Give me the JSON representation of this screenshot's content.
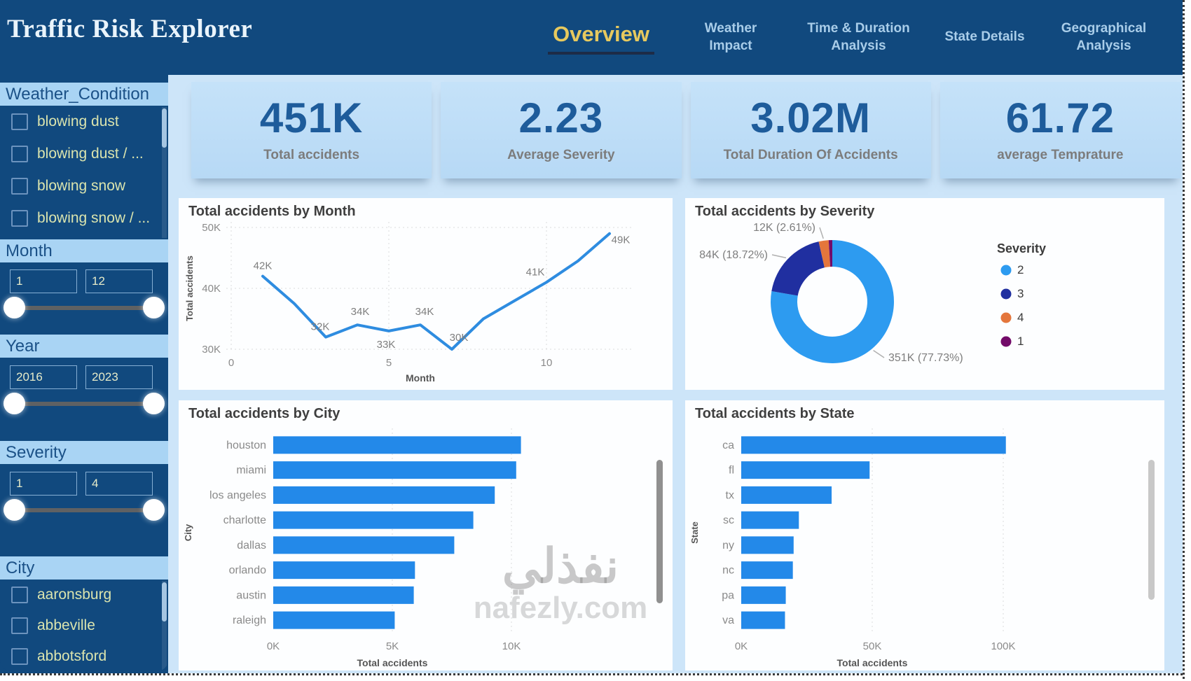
{
  "header": {
    "title": "Traffic Risk Explorer",
    "tabs": [
      {
        "label": "Overview",
        "active": true
      },
      {
        "label": "Weather Impact",
        "active": false
      },
      {
        "label": "Time & Duration Analysis",
        "active": false
      },
      {
        "label": "State Details",
        "active": false
      },
      {
        "label": "Geographical Analysis",
        "active": false
      }
    ]
  },
  "sidebar": {
    "weather_filter": {
      "title": "Weather_Condition",
      "items": [
        "blowing dust",
        "blowing dust / ...",
        "blowing snow",
        "blowing snow / ..."
      ]
    },
    "month_filter": {
      "title": "Month",
      "min": "1",
      "max": "12"
    },
    "year_filter": {
      "title": "Year",
      "min": "2016",
      "max": "2023"
    },
    "severity_filter": {
      "title": "Severity",
      "min": "1",
      "max": "4"
    },
    "city_filter": {
      "title": "City",
      "items": [
        "aaronsburg",
        "abbeville",
        "abbotsford"
      ]
    }
  },
  "kpis": [
    {
      "value": "451K",
      "label": "Total accidents"
    },
    {
      "value": "2.23",
      "label": "Average Severity"
    },
    {
      "value": "3.02M",
      "label": "Total Duration Of Accidents"
    },
    {
      "value": "61.72",
      "label": "average Temprature"
    }
  ],
  "watermark": {
    "arabic": "نفذلي",
    "domain": "nafezly.com"
  },
  "colors": {
    "header_bg": "#11497E",
    "page_bg": "#CDE5F9",
    "panel_bg": "#FDFEFF",
    "accent_gold": "#E7C95E",
    "tab_inactive": "#A9CDE9",
    "filter_header_bg": "#A9D4F4",
    "filter_header_text": "#1B5187",
    "filter_item_text": "#DAE4AE",
    "kpi_value": "#1E5C9B",
    "kpi_label": "#7C7C7C",
    "bar_blue": "#2389E9",
    "line_blue": "#2E8CE0",
    "axis_text": "#8A8A8A",
    "data_label": "#7E7E7E"
  },
  "chart_data": [
    {
      "id": "accidents_by_month",
      "type": "line",
      "title": "Total accidents by Month",
      "xlabel": "Month",
      "ylabel": "Total accidents",
      "x": [
        1,
        2,
        3,
        4,
        5,
        6,
        7,
        8,
        9,
        10,
        11,
        12
      ],
      "values": [
        42000,
        37500,
        32000,
        34000,
        33000,
        34000,
        30000,
        35000,
        38000,
        41000,
        44500,
        49000
      ],
      "point_labels": {
        "1": "42K",
        "3": "32K",
        "4": "34K",
        "5": "33K",
        "6": "34K",
        "7": "30K",
        "10": "41K",
        "12": "49K"
      },
      "ylim": [
        30000,
        50000
      ],
      "yticks": [
        {
          "label": "30K",
          "value": 30000
        },
        {
          "label": "40K",
          "value": 40000
        },
        {
          "label": "50K",
          "value": 50000
        }
      ],
      "xticks": [
        {
          "label": "0",
          "value": 0
        },
        {
          "label": "5",
          "value": 5
        },
        {
          "label": "10",
          "value": 10
        }
      ],
      "grid": "dotted"
    },
    {
      "id": "accidents_by_severity",
      "type": "donut",
      "title": "Total accidents by Severity",
      "legend_title": "Severity",
      "legend_position": "right",
      "slices": [
        {
          "name": "2",
          "value": 351000,
          "pct": 77.73,
          "label": "351K (77.73%)",
          "color": "#2D9BF0"
        },
        {
          "name": "3",
          "value": 84000,
          "pct": 18.72,
          "label": "84K (18.72%)",
          "color": "#202FA0"
        },
        {
          "name": "4",
          "value": 12000,
          "pct": 2.61,
          "label": "12K (2.61%)",
          "color": "#E4763C"
        },
        {
          "name": "1",
          "value": 4000,
          "pct": 0.94,
          "label": "",
          "color": "#730B69"
        }
      ]
    },
    {
      "id": "accidents_by_city",
      "type": "bar",
      "title": "Total accidents by City",
      "xlabel": "Total accidents",
      "ylabel": "City",
      "categories": [
        "houston",
        "miami",
        "los angeles",
        "charlotte",
        "dallas",
        "orlando",
        "austin",
        "raleigh"
      ],
      "values": [
        10400,
        10200,
        9300,
        8400,
        7600,
        5950,
        5900,
        5100
      ],
      "xticks": [
        {
          "label": "0K",
          "value": 0
        },
        {
          "label": "5K",
          "value": 5000
        },
        {
          "label": "10K",
          "value": 10000
        }
      ],
      "xlim": [
        0,
        12000
      ]
    },
    {
      "id": "accidents_by_state",
      "type": "bar",
      "title": "Total accidents by State",
      "xlabel": "Total accidents",
      "ylabel": "State",
      "categories": [
        "ca",
        "fl",
        "tx",
        "sc",
        "ny",
        "nc",
        "pa",
        "va"
      ],
      "values": [
        101000,
        49000,
        34500,
        22000,
        20000,
        19700,
        17000,
        16700
      ],
      "xticks": [
        {
          "label": "0K",
          "value": 0
        },
        {
          "label": "50K",
          "value": 50000
        },
        {
          "label": "100K",
          "value": 100000
        }
      ],
      "xlim": [
        0,
        125000
      ]
    }
  ]
}
